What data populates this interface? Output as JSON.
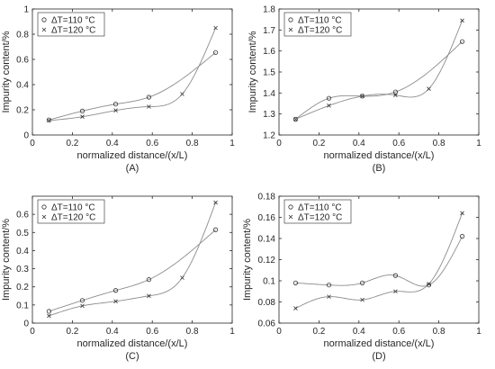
{
  "chart_data": [
    {
      "type": "scatter",
      "panel_label": "(A)",
      "xlabel": "normalized distance/(x/L)",
      "ylabel": "Impurity content/%",
      "xlim": [
        0,
        1
      ],
      "ylim": [
        0,
        1
      ],
      "xticks": [
        0,
        0.2,
        0.4,
        0.6,
        0.8,
        1
      ],
      "xtick_labels": [
        "0",
        "0.2",
        "0.4",
        "0.6",
        "0.8",
        "1"
      ],
      "yticks": [
        0,
        0.2,
        0.4,
        0.6,
        0.8,
        1
      ],
      "ytick_labels": [
        "0",
        "0.2",
        "0.4",
        "0.6",
        "0.8",
        "1"
      ],
      "legend_position": "top-left",
      "series": [
        {
          "name": "ΔT=110 °C",
          "marker": "circle",
          "x": [
            0.083,
            0.25,
            0.417,
            0.583,
            0.917
          ],
          "y": [
            0.12,
            0.19,
            0.245,
            0.3,
            0.655
          ]
        },
        {
          "name": "ΔT=120 °C",
          "marker": "cross",
          "x": [
            0.083,
            0.25,
            0.417,
            0.583,
            0.75,
            0.917
          ],
          "y": [
            0.115,
            0.145,
            0.195,
            0.225,
            0.325,
            0.85
          ]
        }
      ]
    },
    {
      "type": "scatter",
      "panel_label": "(B)",
      "xlabel": "normalized distance/(x/L)",
      "ylabel": "Impurity content/%",
      "xlim": [
        0,
        1
      ],
      "ylim": [
        1.2,
        1.8
      ],
      "xticks": [
        0,
        0.2,
        0.4,
        0.6,
        0.8,
        1
      ],
      "xtick_labels": [
        "0",
        "0.2",
        "0.4",
        "0.6",
        "0.8",
        "1"
      ],
      "yticks": [
        1.2,
        1.3,
        1.4,
        1.5,
        1.6,
        1.7,
        1.8
      ],
      "ytick_labels": [
        "1.2",
        "1.3",
        "1.4",
        "1.5",
        "1.6",
        "1.7",
        "1.8"
      ],
      "legend_position": "top-left",
      "series": [
        {
          "name": "ΔT=110 °C",
          "marker": "circle",
          "x": [
            0.083,
            0.25,
            0.417,
            0.583,
            0.917
          ],
          "y": [
            1.275,
            1.375,
            1.385,
            1.405,
            1.645
          ]
        },
        {
          "name": "ΔT=120 °C",
          "marker": "cross",
          "x": [
            0.083,
            0.25,
            0.417,
            0.583,
            0.75,
            0.917
          ],
          "y": [
            1.275,
            1.34,
            1.385,
            1.39,
            1.42,
            1.745
          ]
        }
      ]
    },
    {
      "type": "scatter",
      "panel_label": "(C)",
      "xlabel": "normalized distance/(x/L)",
      "ylabel": "Impurity content/%",
      "xlim": [
        0,
        1
      ],
      "ylim": [
        0,
        0.7
      ],
      "xticks": [
        0,
        0.2,
        0.4,
        0.6,
        0.8,
        1
      ],
      "xtick_labels": [
        "0",
        "0.2",
        "0.4",
        "0.6",
        "0.8",
        "1"
      ],
      "yticks": [
        0,
        0.1,
        0.2,
        0.3,
        0.4,
        0.5,
        0.6
      ],
      "ytick_labels": [
        "0",
        "0.1",
        "0.2",
        "0.3",
        "0.4",
        "0.5",
        "0.6"
      ],
      "legend_position": "top-left",
      "series": [
        {
          "name": "ΔT=110 °C",
          "marker": "circle",
          "x": [
            0.083,
            0.25,
            0.417,
            0.583,
            0.917
          ],
          "y": [
            0.065,
            0.125,
            0.18,
            0.24,
            0.515
          ]
        },
        {
          "name": "ΔT=120 °C",
          "marker": "cross",
          "x": [
            0.083,
            0.25,
            0.417,
            0.583,
            0.75,
            0.917
          ],
          "y": [
            0.04,
            0.095,
            0.12,
            0.15,
            0.25,
            0.665
          ]
        }
      ]
    },
    {
      "type": "scatter",
      "panel_label": "(D)",
      "xlabel": "normalized distance/(x/L)",
      "ylabel": "Impurity content/%",
      "xlim": [
        0,
        1
      ],
      "ylim": [
        0.06,
        0.18
      ],
      "xticks": [
        0,
        0.2,
        0.4,
        0.6,
        0.8,
        1
      ],
      "xtick_labels": [
        "0",
        "0.2",
        "0.4",
        "0.6",
        "0.8",
        "1"
      ],
      "yticks": [
        0.06,
        0.08,
        0.1,
        0.12,
        0.14,
        0.16,
        0.18
      ],
      "ytick_labels": [
        "0.06",
        "0.08",
        "0.1",
        "0.12",
        "0.14",
        "0.16",
        "0.18"
      ],
      "legend_position": "top-left",
      "series": [
        {
          "name": "ΔT=110 °C",
          "marker": "circle",
          "x": [
            0.083,
            0.25,
            0.417,
            0.583,
            0.75,
            0.917
          ],
          "y": [
            0.098,
            0.096,
            0.098,
            0.105,
            0.096,
            0.142
          ]
        },
        {
          "name": "ΔT=120 °C",
          "marker": "cross",
          "x": [
            0.083,
            0.25,
            0.417,
            0.583,
            0.75,
            0.917
          ],
          "y": [
            0.074,
            0.085,
            0.082,
            0.09,
            0.097,
            0.164
          ]
        }
      ]
    }
  ],
  "colors": {
    "axis": "#262626",
    "series_line": "#8c8c8c",
    "marker": "#333333",
    "background": "#ffffff"
  }
}
